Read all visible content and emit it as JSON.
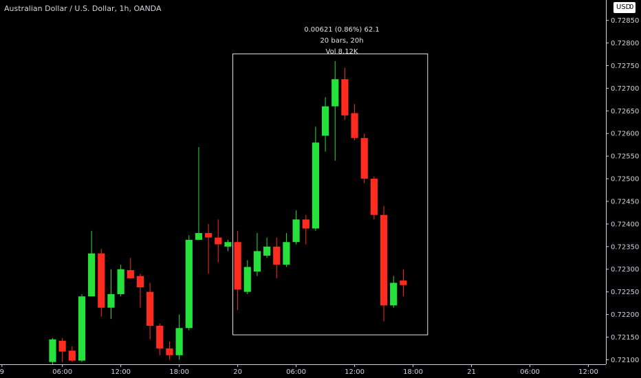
{
  "header": {
    "title": "Australian Dollar / U.S. Dollar, 1h, OANDA",
    "currency": "USD",
    "currency_suffix": "0"
  },
  "measure_tool": {
    "change": "0.00621 (0.86%) 62.1",
    "bars": "20 bars, 20h",
    "volume": "Vol 8.12K"
  },
  "chart_data": {
    "type": "candlestick",
    "title": "Australian Dollar / U.S. Dollar, 1h, OANDA",
    "ylim": [
      0.7209,
      0.72895
    ],
    "y_ticks": [
      0.721,
      0.7215,
      0.722,
      0.7225,
      0.723,
      0.7235,
      0.724,
      0.7245,
      0.725,
      0.7255,
      0.726,
      0.7265,
      0.727,
      0.7275,
      0.728,
      0.7285
    ],
    "y_tick_labels": [
      "0.72100",
      "0.72150",
      "0.72200",
      "0.72250",
      "0.72300",
      "0.72350",
      "0.72400",
      "0.72450",
      "0.72500",
      "0.72550",
      "0.72600",
      "0.72650",
      "0.72700",
      "0.72750",
      "0.72800",
      "0.72850"
    ],
    "x_tick_labels": [
      {
        "label": "9",
        "bar": -5.2
      },
      {
        "label": "06:00",
        "bar": 1
      },
      {
        "label": "12:00",
        "bar": 7
      },
      {
        "label": "18:00",
        "bar": 13
      },
      {
        "label": "20",
        "bar": 19
      },
      {
        "label": "06:00",
        "bar": 25
      },
      {
        "label": "12:00",
        "bar": 31
      },
      {
        "label": "18:00",
        "bar": 37
      },
      {
        "label": "21",
        "bar": 43
      },
      {
        "label": "06:00",
        "bar": 49
      },
      {
        "label": "12:00",
        "bar": 55
      }
    ],
    "x_range": [
      -5.4,
      56.8
    ],
    "candles": [
      {
        "o": 0.72095,
        "h": 0.72148,
        "l": 0.7209,
        "c": 0.72145
      },
      {
        "o": 0.72142,
        "h": 0.72148,
        "l": 0.72095,
        "c": 0.72118
      },
      {
        "o": 0.7212,
        "h": 0.7213,
        "l": 0.72095,
        "c": 0.72098
      },
      {
        "o": 0.72098,
        "h": 0.72245,
        "l": 0.72095,
        "c": 0.7224
      },
      {
        "o": 0.7224,
        "h": 0.72385,
        "l": 0.7224,
        "c": 0.72335
      },
      {
        "o": 0.72335,
        "h": 0.72345,
        "l": 0.72195,
        "c": 0.72215
      },
      {
        "o": 0.72215,
        "h": 0.723,
        "l": 0.7219,
        "c": 0.72245
      },
      {
        "o": 0.72245,
        "h": 0.7231,
        "l": 0.7224,
        "c": 0.723
      },
      {
        "o": 0.72298,
        "h": 0.72325,
        "l": 0.7228,
        "c": 0.7228
      },
      {
        "o": 0.72285,
        "h": 0.7229,
        "l": 0.72215,
        "c": 0.7226
      },
      {
        "o": 0.7225,
        "h": 0.7227,
        "l": 0.72145,
        "c": 0.72175
      },
      {
        "o": 0.72175,
        "h": 0.7218,
        "l": 0.7211,
        "c": 0.72125
      },
      {
        "o": 0.72125,
        "h": 0.7214,
        "l": 0.721,
        "c": 0.7211
      },
      {
        "o": 0.7211,
        "h": 0.722,
        "l": 0.721,
        "c": 0.7217
      },
      {
        "o": 0.7217,
        "h": 0.72375,
        "l": 0.72165,
        "c": 0.72365
      },
      {
        "o": 0.72365,
        "h": 0.7257,
        "l": 0.72365,
        "c": 0.7238
      },
      {
        "o": 0.7238,
        "h": 0.724,
        "l": 0.7229,
        "c": 0.7237
      },
      {
        "o": 0.7237,
        "h": 0.7241,
        "l": 0.72315,
        "c": 0.72355
      },
      {
        "o": 0.7235,
        "h": 0.72365,
        "l": 0.7234,
        "c": 0.7236
      },
      {
        "o": 0.7236,
        "h": 0.72385,
        "l": 0.7221,
        "c": 0.72255
      },
      {
        "o": 0.7225,
        "h": 0.7232,
        "l": 0.72245,
        "c": 0.72305
      },
      {
        "o": 0.72295,
        "h": 0.7238,
        "l": 0.72285,
        "c": 0.7234
      },
      {
        "o": 0.7233,
        "h": 0.7237,
        "l": 0.72325,
        "c": 0.7235
      },
      {
        "o": 0.7235,
        "h": 0.7237,
        "l": 0.7228,
        "c": 0.7231
      },
      {
        "o": 0.7231,
        "h": 0.7238,
        "l": 0.72305,
        "c": 0.7236
      },
      {
        "o": 0.7236,
        "h": 0.7243,
        "l": 0.72355,
        "c": 0.7241
      },
      {
        "o": 0.7241,
        "h": 0.7242,
        "l": 0.72355,
        "c": 0.7239
      },
      {
        "o": 0.7239,
        "h": 0.72615,
        "l": 0.72385,
        "c": 0.7258
      },
      {
        "o": 0.72595,
        "h": 0.7268,
        "l": 0.7256,
        "c": 0.7266
      },
      {
        "o": 0.7266,
        "h": 0.7276,
        "l": 0.7254,
        "c": 0.7272
      },
      {
        "o": 0.7272,
        "h": 0.72745,
        "l": 0.7263,
        "c": 0.7264
      },
      {
        "o": 0.72645,
        "h": 0.72665,
        "l": 0.72585,
        "c": 0.7259
      },
      {
        "o": 0.7259,
        "h": 0.726,
        "l": 0.7249,
        "c": 0.725
      },
      {
        "o": 0.725,
        "h": 0.72505,
        "l": 0.7241,
        "c": 0.7242
      },
      {
        "o": 0.7242,
        "h": 0.7244,
        "l": 0.72185,
        "c": 0.7222
      },
      {
        "o": 0.7222,
        "h": 0.72285,
        "l": 0.72215,
        "c": 0.7227
      },
      {
        "o": 0.72275,
        "h": 0.723,
        "l": 0.7224,
        "c": 0.72265
      }
    ],
    "measure_range": {
      "from_bar": 19,
      "to_bar": 38,
      "high": 0.72776,
      "low": 0.72155
    },
    "colors": {
      "up": "#26e03b",
      "down": "#ff2b1f",
      "wick_up": "#26e03b",
      "wick_down": "#ff2b1f",
      "box": "#e6e6e6",
      "axis": "#d1d4dc"
    }
  }
}
